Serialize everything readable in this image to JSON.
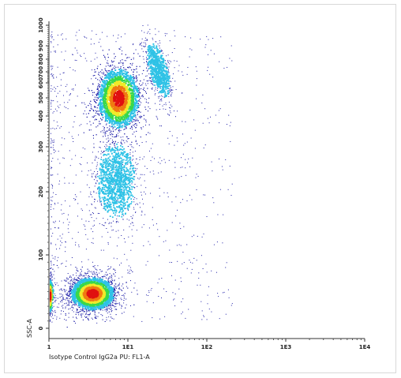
{
  "chart_data": {
    "type": "scatter",
    "subtype": "flow-cytometry-density-dot-plot",
    "xlabel": "Isotype Control IgG2a PU: FL1-A",
    "ylabel": "SSC-A",
    "x_scale": "log",
    "xlim": [
      1,
      10000
    ],
    "x_ticks": [
      {
        "value": 1,
        "label": "1"
      },
      {
        "value": 10,
        "label": "1E1"
      },
      {
        "value": 100,
        "label": "1E2"
      },
      {
        "value": 1000,
        "label": "1E3"
      },
      {
        "value": 10000,
        "label": "1E4"
      }
    ],
    "y_scale": "biexponential",
    "ylim": [
      0,
      1000
    ],
    "y_ticks": [
      {
        "value": 0,
        "label": "0"
      },
      {
        "value": 100,
        "label": "100"
      },
      {
        "value": 200,
        "label": "200"
      },
      {
        "value": 300,
        "label": "300"
      },
      {
        "value": 400,
        "label": "400"
      },
      {
        "value": 500,
        "label": "500"
      },
      {
        "value": 600,
        "label": "600"
      },
      {
        "value": 700,
        "label": "700"
      },
      {
        "value": 800,
        "label": "800"
      },
      {
        "value": 900,
        "label": "900"
      },
      {
        "value": 1000,
        "label": "1000"
      }
    ],
    "density_colors": [
      "#1f1fa8",
      "#2fc2e6",
      "#39d84a",
      "#f0ea2a",
      "#f07a12",
      "#e01010"
    ],
    "populations": [
      {
        "center_x": 3.5,
        "center_y": 48,
        "peak_density_color": "red"
      },
      {
        "center_x": 7.5,
        "center_y": 500,
        "peak_density_color": "red"
      },
      {
        "center_x": 7,
        "center_y": 225,
        "peak_density_color": "cyan"
      },
      {
        "center_x": 24,
        "center_y": 720,
        "peak_density_color": "cyan"
      },
      {
        "center_x": 1,
        "center_y": 45,
        "peak_density_color": "red"
      }
    ]
  }
}
